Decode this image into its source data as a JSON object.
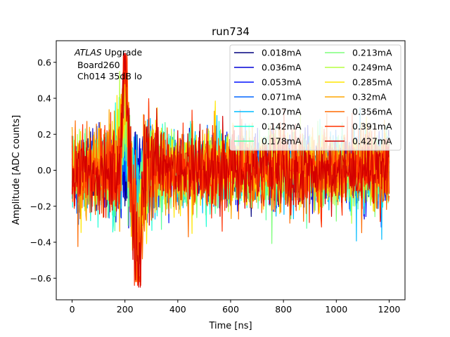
{
  "chart_data": {
    "type": "line",
    "title": "run734",
    "xlabel": "Time [ns]",
    "ylabel": "Amplitude [ADC counts]",
    "xlim": [
      -60,
      1260
    ],
    "ylim": [
      -0.72,
      0.72
    ],
    "x_range": [
      0,
      1200
    ],
    "xticks": [
      0,
      200,
      400,
      600,
      800,
      1000,
      1200
    ],
    "xtick_labels": [
      "0",
      "200",
      "400",
      "600",
      "800",
      "1000",
      "1200"
    ],
    "yticks": [
      -0.6,
      -0.4,
      -0.2,
      0.0,
      0.2,
      0.4,
      0.6
    ],
    "ytick_labels": [
      "−0.6",
      "−0.4",
      "−0.2",
      "0.0",
      "0.2",
      "0.4",
      "0.6"
    ],
    "grid": false,
    "legend_position": "top-right",
    "legend_columns": 2,
    "annotation": {
      "line1_italic": "ATLAS",
      "line1_rest": " Upgrade",
      "line2": "Board260",
      "line3": "Ch014 35dB lo"
    },
    "series": [
      {
        "name": "0.018mA",
        "color": "#00007f",
        "noise_sigma": 0.08,
        "peak": 0.0,
        "max_abs": 0.33
      },
      {
        "name": "0.036mA",
        "color": "#0000d5",
        "noise_sigma": 0.09,
        "peak": 0.05,
        "max_abs": 0.36
      },
      {
        "name": "0.053mA",
        "color": "#0010ff",
        "noise_sigma": 0.09,
        "peak": 0.1,
        "max_abs": 0.4
      },
      {
        "name": "0.071mA",
        "color": "#0066ff",
        "noise_sigma": 0.09,
        "peak": 0.15,
        "max_abs": 0.42
      },
      {
        "name": "0.107mA",
        "color": "#00bcff",
        "noise_sigma": 0.1,
        "peak": 0.2,
        "max_abs": 0.45
      },
      {
        "name": "0.142mA",
        "color": "#1fffd7",
        "noise_sigma": 0.1,
        "peak": 0.25,
        "max_abs": 0.48
      },
      {
        "name": "0.178mA",
        "color": "#5cffa0",
        "noise_sigma": 0.1,
        "peak": 0.3,
        "max_abs": 0.5
      },
      {
        "name": "0.213mA",
        "color": "#7dff7a",
        "noise_sigma": 0.1,
        "peak": 0.35,
        "max_abs": 0.52
      },
      {
        "name": "0.249mA",
        "color": "#b6ff40",
        "noise_sigma": 0.1,
        "peak": 0.4,
        "max_abs": 0.55
      },
      {
        "name": "0.285mA",
        "color": "#ffe600",
        "noise_sigma": 0.11,
        "peak": 0.45,
        "max_abs": 0.58
      },
      {
        "name": "0.32mA",
        "color": "#ffa500",
        "noise_sigma": 0.11,
        "peak": 0.5,
        "max_abs": 0.6
      },
      {
        "name": "0.356mA",
        "color": "#ff6a00",
        "noise_sigma": 0.11,
        "peak": 0.55,
        "max_abs": 0.62
      },
      {
        "name": "0.391mA",
        "color": "#ff3000",
        "noise_sigma": 0.11,
        "peak": 0.6,
        "max_abs": 0.64
      },
      {
        "name": "0.427mA",
        "color": "#d40000",
        "noise_sigma": 0.1,
        "peak": 0.62,
        "max_abs": 0.65
      }
    ]
  }
}
